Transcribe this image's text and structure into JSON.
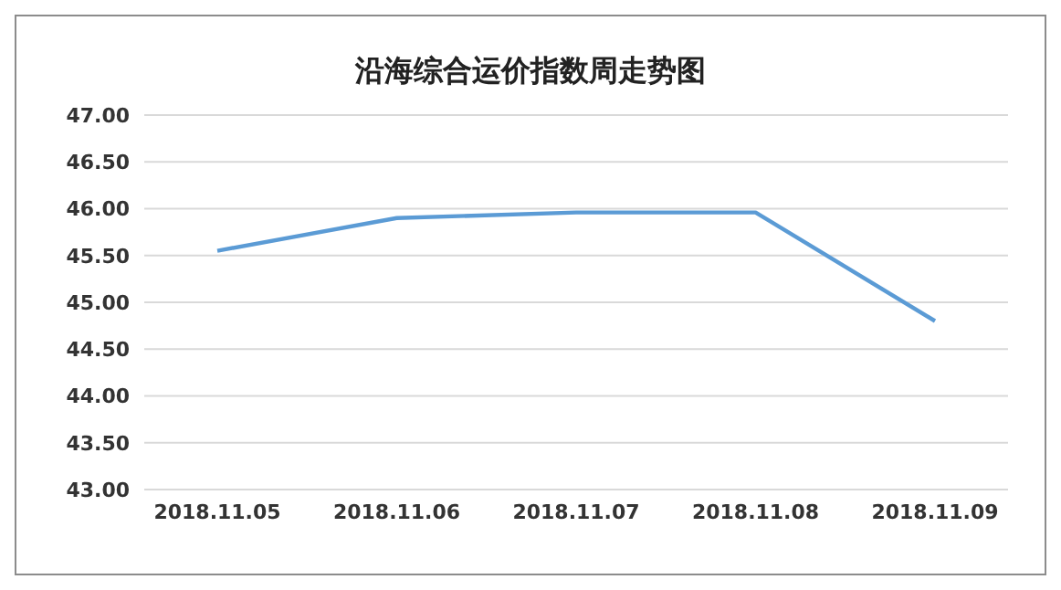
{
  "chart_data": {
    "type": "line",
    "title": "沿海综合运价指数周走势图",
    "categories": [
      "2018.11.05",
      "2018.11.06",
      "2018.11.07",
      "2018.11.08",
      "2018.11.09"
    ],
    "series": [
      {
        "color": "#5b9bd5",
        "values": [
          45.55,
          45.9,
          45.96,
          45.96,
          44.8
        ]
      }
    ],
    "ylim": [
      43,
      47
    ],
    "yticks": [
      {
        "value": 43,
        "label": "43.00"
      },
      {
        "value": 43.5,
        "label": "43.50"
      },
      {
        "value": 44,
        "label": "44.00"
      },
      {
        "value": 44.5,
        "label": "44.50"
      },
      {
        "value": 45,
        "label": "45.00"
      },
      {
        "value": 45.5,
        "label": "45.50"
      },
      {
        "value": 46,
        "label": "46.00"
      },
      {
        "value": 46.5,
        "label": "46.50"
      },
      {
        "value": 47,
        "label": "47.00"
      }
    ],
    "grid": "y",
    "legend": false,
    "marker": "none",
    "line_style": "solid"
  }
}
